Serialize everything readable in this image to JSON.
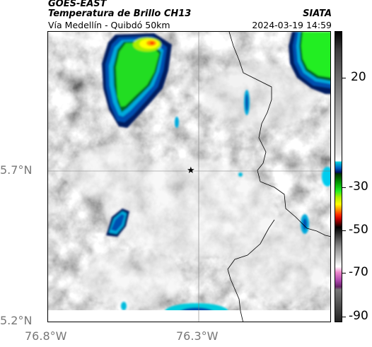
{
  "header": {
    "satellite": "GOES-EAST",
    "product": "Temperatura de Brillo CH13",
    "organization": "SIATA",
    "location": "Vía Medellín - Quibdó 50km",
    "datetime": "2024-03-19 14:59"
  },
  "axes": {
    "lat_ticks": [
      "5.7°N",
      "5.2°N"
    ],
    "lon_ticks": [
      "76.8°W",
      "76.3°W"
    ]
  },
  "colorbar": {
    "ticks": [
      "20",
      "-30",
      "-50",
      "-70",
      "-90"
    ]
  },
  "colors": {
    "cold_cloud_green": "#22ee22",
    "cold_cloud_blue": "#0050b0",
    "cold_cloud_yellow": "#ffff00",
    "warm_gray": "#d0d0d0",
    "border": "#000000"
  },
  "map": {
    "marker_icon": "star-icon"
  }
}
